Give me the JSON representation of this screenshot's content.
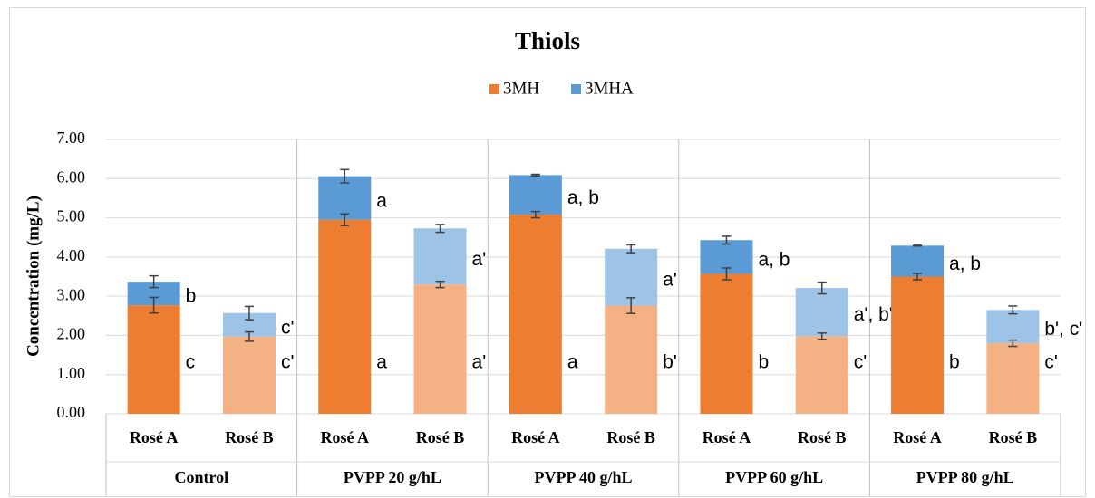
{
  "chart_data": {
    "type": "stacked_bar",
    "title": "Thiols",
    "y_label": "Concentration (mg/L)",
    "groups": [
      "Control",
      "PVPP 20 g/hL",
      "PVPP 40 g/hL",
      "PVPP 60 g/hL",
      "PVPP 80 g/hL"
    ],
    "categories": [
      "Rosé A",
      "Rosé B",
      "Rosé A",
      "Rosé B",
      "Rosé A",
      "Rosé B",
      "Rosé A",
      "Rosé B",
      "Rosé A",
      "Rosé B"
    ],
    "series": [
      {
        "name": "3MH",
        "color": "#ed7d31",
        "light_color": "#f4b183",
        "values": [
          2.77,
          1.97,
          4.95,
          3.3,
          5.08,
          2.76,
          3.57,
          1.98,
          3.5,
          1.8
        ],
        "errors": [
          0.2,
          0.12,
          0.15,
          0.08,
          0.08,
          0.2,
          0.15,
          0.08,
          0.08,
          0.08
        ],
        "labels": [
          "c",
          "c'",
          "a",
          "a'",
          "a",
          "b'",
          "b",
          "c'",
          "b",
          "c'"
        ],
        "label_color": "#ed7d31"
      },
      {
        "name": "3MHA",
        "color": "#5b9bd5",
        "light_color": "#9dc3e6",
        "values": [
          0.6,
          0.6,
          1.11,
          1.43,
          1.01,
          1.45,
          0.86,
          1.23,
          0.79,
          0.85
        ],
        "errors": [
          0.15,
          0.17,
          0.17,
          0.1,
          0.02,
          0.1,
          0.1,
          0.15,
          0.01,
          0.1
        ],
        "labels": [
          "b",
          "c'",
          "a",
          "a'",
          "a, b",
          "a'",
          "a, b",
          "a', b'",
          "a, b",
          "b', c'"
        ],
        "label_color": "#5b9bd5"
      }
    ],
    "ylim": [
      0,
      7
    ],
    "yticks": [
      {
        "value": 0,
        "label": "0.00"
      },
      {
        "value": 1,
        "label": "1.00"
      },
      {
        "value": 2,
        "label": "2.00"
      },
      {
        "value": 3,
        "label": "3.00"
      },
      {
        "value": 4,
        "label": "4.00"
      },
      {
        "value": 5,
        "label": "5.00"
      },
      {
        "value": 6,
        "label": "6.00"
      },
      {
        "value": 7,
        "label": "7.00"
      }
    ],
    "grid": true
  }
}
